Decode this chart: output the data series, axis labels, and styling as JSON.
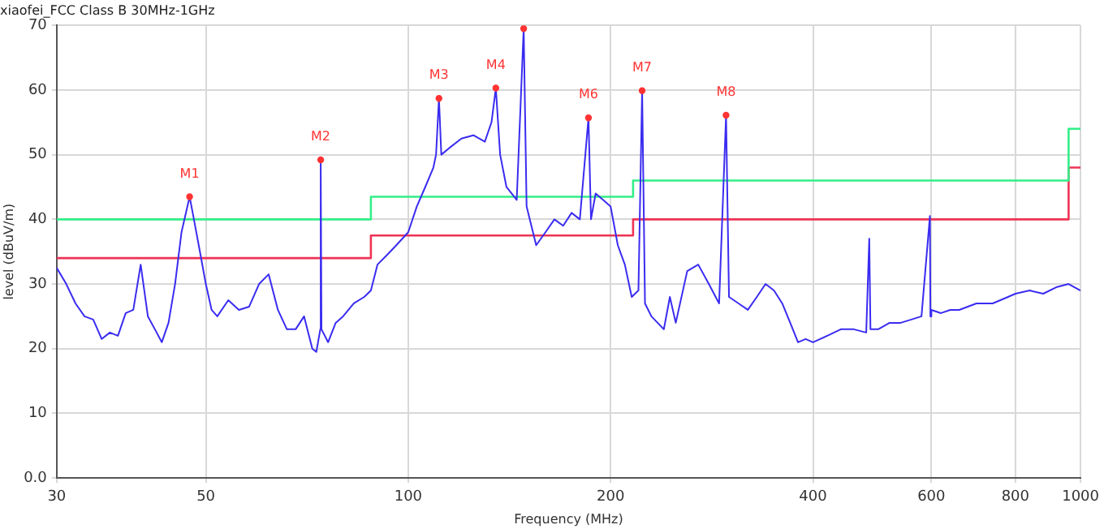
{
  "chart_data": {
    "type": "line",
    "title": "xiaofei_FCC Class B 30MHz-1GHz",
    "xlabel": "Frequency (MHz)",
    "ylabel": "level (dBuV/m)",
    "log": "x",
    "grid": true,
    "legend": false,
    "xlim": [
      30,
      1000
    ],
    "xticks": [
      30,
      50,
      100,
      200,
      400,
      600,
      800,
      1000
    ],
    "ylim": [
      0,
      70
    ],
    "yticks": [
      {
        "value": 0,
        "label": "0.0"
      },
      10,
      20,
      30,
      40,
      50,
      60,
      70
    ],
    "series": [
      {
        "color": "#3a2cf0",
        "marker": "none",
        "x": [
          30,
          31,
          32,
          33,
          34,
          35,
          36,
          37,
          38,
          39,
          40,
          41,
          42,
          43,
          44,
          45,
          46,
          47.3,
          48,
          49,
          50,
          51,
          52,
          54,
          56,
          58,
          60,
          62,
          64,
          66,
          68,
          70,
          72,
          73,
          74,
          74.1,
          74.3,
          76,
          78,
          80,
          83,
          86,
          88,
          90,
          93,
          96,
          100,
          103,
          106,
          109,
          110,
          111.1,
          112,
          115,
          120,
          125,
          130,
          133,
          135,
          137,
          140,
          145,
          148.5,
          150,
          155,
          160,
          165,
          170,
          175,
          180,
          185.4,
          187,
          190,
          195,
          200,
          205,
          210,
          215,
          220,
          222.8,
          225,
          230,
          240,
          245,
          250,
          260,
          270,
          280,
          290,
          297,
          300,
          310,
          320,
          330,
          340,
          350,
          360,
          370,
          380,
          390,
          400,
          420,
          440,
          460,
          480,
          485,
          487,
          500,
          520,
          540,
          560,
          580,
          597,
          598,
          600,
          620,
          640,
          660,
          700,
          740,
          780,
          800,
          840,
          880,
          920,
          960,
          1000
        ],
        "values": [
          32.5,
          30,
          27,
          25,
          24.5,
          21.5,
          22.5,
          22,
          25.5,
          26,
          33,
          25,
          23,
          21,
          24,
          30,
          38,
          43.5,
          40,
          35,
          30,
          26,
          25,
          27.5,
          26,
          26.5,
          30,
          31.5,
          26,
          23,
          23,
          25,
          20,
          19.5,
          23,
          49.2,
          23,
          21,
          24,
          25,
          27,
          28,
          29,
          33,
          34.5,
          36,
          38,
          42,
          45,
          48,
          50,
          58.7,
          50,
          51,
          52.5,
          53,
          52,
          55,
          60.3,
          50,
          45,
          43,
          69.5,
          42,
          36,
          38,
          40,
          39,
          41,
          40,
          55.7,
          40,
          44,
          43,
          42,
          36,
          33,
          28,
          29,
          59.9,
          27,
          25,
          23,
          28,
          24,
          32,
          33,
          30,
          27,
          56.1,
          28,
          27,
          26,
          28,
          30,
          29,
          27,
          24,
          21,
          21.5,
          21,
          22,
          23,
          23,
          22.5,
          37,
          23,
          23,
          24,
          24,
          24.5,
          25,
          40.5,
          25,
          26,
          25.5,
          26,
          26,
          27,
          27,
          28,
          28.5,
          29,
          28.5,
          29.5,
          30,
          29
        ]
      },
      {
        "type": "step",
        "color": "#33ee88",
        "marker": "none",
        "x": [
          30,
          88,
          216,
          960,
          1000
        ],
        "values": [
          40,
          43.5,
          46,
          54,
          54
        ]
      },
      {
        "type": "step",
        "color": "#ee3355",
        "marker": "none",
        "x": [
          30,
          88,
          216,
          960,
          1000
        ],
        "values": [
          34,
          37.5,
          40,
          48,
          48
        ]
      },
      {
        "type": "scatter",
        "color": "#ff3333",
        "marker": "circle",
        "x": [
          47.3,
          74.1,
          111.1,
          135,
          148.5,
          185.4,
          222.8,
          297
        ],
        "values": [
          43.5,
          49.2,
          58.7,
          60.3,
          69.5,
          55.7,
          59.9,
          56.1
        ]
      }
    ],
    "annotations": [
      {
        "text": "M1",
        "x": 47.3,
        "y": 43.5
      },
      {
        "text": "M2",
        "x": 74.1,
        "y": 49.2
      },
      {
        "text": "M3",
        "x": 111.1,
        "y": 58.7
      },
      {
        "text": "M4",
        "x": 135,
        "y": 60.3
      },
      {
        "text": "M6",
        "x": 185.4,
        "y": 55.7
      },
      {
        "text": "M7",
        "x": 222.8,
        "y": 59.9
      },
      {
        "text": "M8",
        "x": 297,
        "y": 56.1
      }
    ]
  }
}
